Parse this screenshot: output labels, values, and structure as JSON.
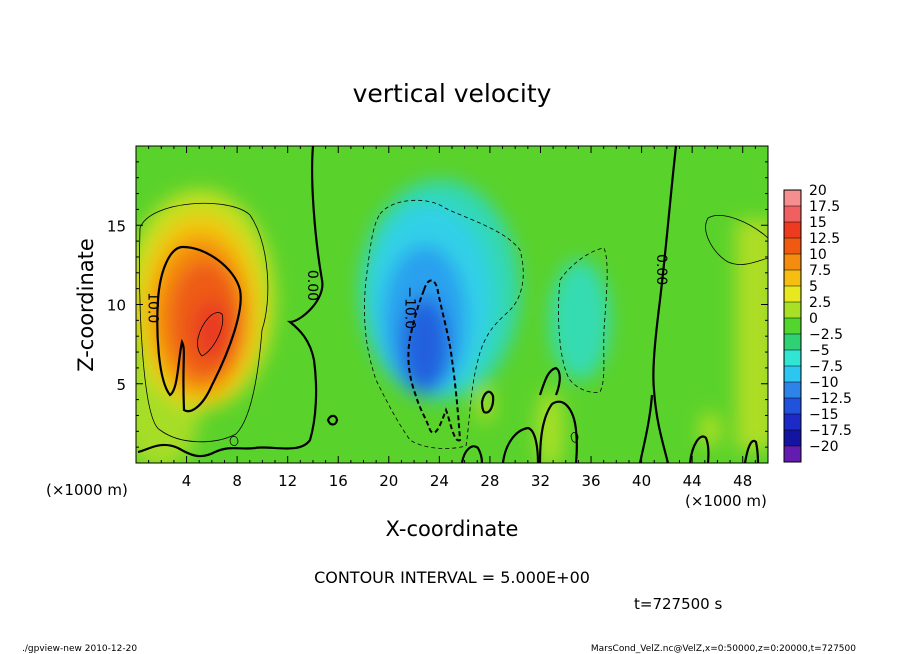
{
  "chart_data": {
    "type": "heatmap",
    "title": "vertical velocity",
    "xlabel": "X-coordinate",
    "ylabel": "Z-coordinate",
    "x_unit_left": "(×1000 m)",
    "x_unit_right": "(×1000 m)",
    "xlim": [
      0,
      50
    ],
    "ylim": [
      0,
      20
    ],
    "xticks": [
      4,
      8,
      12,
      16,
      20,
      24,
      28,
      32,
      36,
      40,
      44,
      48
    ],
    "yticks": [
      5,
      10,
      15
    ],
    "colorbar": {
      "levels": [
        20,
        17.5,
        15,
        12.5,
        10,
        7.5,
        5,
        2.5,
        0,
        -2.5,
        -5,
        -7.5,
        -10,
        -12.5,
        -15,
        -17.5,
        -20
      ],
      "labels": [
        "20",
        "17.5",
        "15",
        "12.5",
        "10",
        "7.5",
        "5",
        "2.5",
        "0",
        "−2.5",
        "−5",
        "−7.5",
        "−10",
        "−12.5",
        "−15",
        "−17.5",
        "−20"
      ],
      "colors": [
        "#f58f8f",
        "#f06060",
        "#ee3a1f",
        "#f05a10",
        "#f48c10",
        "#f6be10",
        "#e8e81e",
        "#a8e026",
        "#52d52c",
        "#2ed272",
        "#30e6d2",
        "#2cc6f0",
        "#2c84e8",
        "#2052dc",
        "#1c2ac6",
        "#1414a2",
        "#641cb0"
      ]
    },
    "contour_labels": [
      {
        "text": "10.0",
        "x": 1.4,
        "y": 9.8
      },
      {
        "text": "0.00",
        "x": 14.0,
        "y": 11.2
      },
      {
        "text": "−10.0",
        "x": 21.7,
        "y": 9.8
      },
      {
        "text": "0.00",
        "x": 41.6,
        "y": 12.2
      }
    ],
    "annotations": {
      "contour_interval": "CONTOUR INTERVAL = 5.000E+00",
      "time": "t=727500 s"
    }
  },
  "footer": {
    "left": "./gpview-new   2010-12-20",
    "right": "MarsCond_VelZ.nc@VelZ,x=0:50000,z=0:20000,t=727500"
  }
}
